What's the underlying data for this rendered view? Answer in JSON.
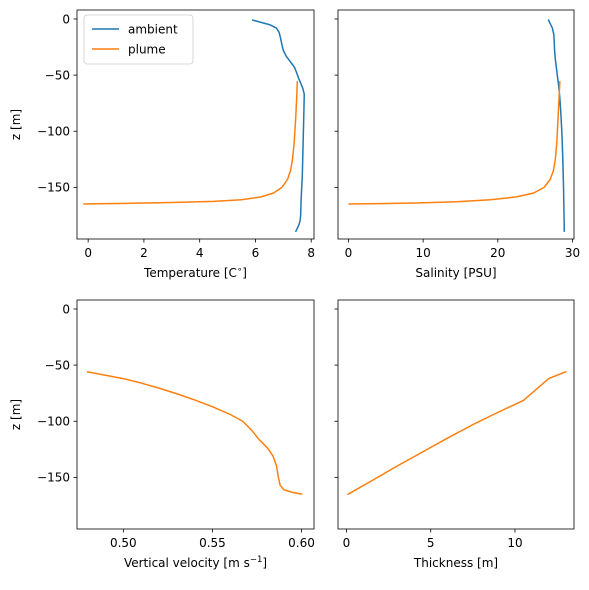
{
  "colors": {
    "ambient": "#1f77b4",
    "plume": "#ff7f0e",
    "axes": "#000000",
    "legend_border": "#cccccc",
    "background": "#ffffff"
  },
  "chart_data": [
    {
      "type": "line",
      "id": "temperature",
      "xlabel": "Temperature [C$^\\circ$]",
      "xlabel_display": {
        "main": "Temperature [C",
        "sup": "∘",
        "tail": "]"
      },
      "ylabel": "z [m]",
      "xlim": [
        -0.4,
        8.1
      ],
      "ylim": [
        -196,
        8
      ],
      "xticks": [
        0,
        2,
        4,
        6,
        8
      ],
      "xtick_labels": [
        "0",
        "2",
        "4",
        "6",
        "8"
      ],
      "yticks": [
        0,
        -50,
        -100,
        -150
      ],
      "ytick_labels": [
        "0",
        "−50",
        "−100",
        "−150"
      ],
      "show_ytick_labels": true,
      "grid": false,
      "legend": {
        "placement": "upper-left",
        "entries": [
          "ambient",
          "plume"
        ]
      },
      "series": [
        {
          "name": "ambient",
          "color_key": "ambient",
          "points": [
            [
              5.9,
              -1
            ],
            [
              6.2,
              -3
            ],
            [
              6.5,
              -5
            ],
            [
              6.75,
              -8
            ],
            [
              6.85,
              -12
            ],
            [
              6.9,
              -17
            ],
            [
              6.95,
              -23
            ],
            [
              7.0,
              -28
            ],
            [
              7.1,
              -33
            ],
            [
              7.25,
              -38
            ],
            [
              7.4,
              -43
            ],
            [
              7.48,
              -48
            ],
            [
              7.55,
              -53
            ],
            [
              7.62,
              -57
            ],
            [
              7.7,
              -62
            ],
            [
              7.75,
              -67
            ],
            [
              7.74,
              -80
            ],
            [
              7.72,
              -100
            ],
            [
              7.7,
              -120
            ],
            [
              7.68,
              -140
            ],
            [
              7.64,
              -160
            ],
            [
              7.62,
              -175
            ],
            [
              7.6,
              -180
            ],
            [
              7.55,
              -184
            ],
            [
              7.45,
              -189
            ]
          ]
        },
        {
          "name": "plume",
          "color_key": "plume",
          "points": [
            [
              7.5,
              -56
            ],
            [
              7.48,
              -70
            ],
            [
              7.44,
              -90
            ],
            [
              7.39,
              -110
            ],
            [
              7.33,
              -125
            ],
            [
              7.26,
              -135
            ],
            [
              7.15,
              -143
            ],
            [
              6.95,
              -150
            ],
            [
              6.65,
              -155
            ],
            [
              6.2,
              -158.5
            ],
            [
              5.5,
              -161
            ],
            [
              4.5,
              -162.5
            ],
            [
              3.0,
              -163.5
            ],
            [
              1.5,
              -164.2
            ],
            [
              0.3,
              -164.6
            ],
            [
              -0.15,
              -164.8
            ]
          ]
        }
      ]
    },
    {
      "type": "line",
      "id": "salinity",
      "xlabel": "Salinity [PSU]",
      "xlabel_display": {
        "main": "Salinity [PSU]",
        "sup": "",
        "tail": ""
      },
      "ylabel": "",
      "xlim": [
        -1.4,
        30.2
      ],
      "ylim": [
        -196,
        8
      ],
      "xticks": [
        0,
        10,
        20,
        30
      ],
      "xtick_labels": [
        "0",
        "10",
        "20",
        "30"
      ],
      "yticks": [
        0,
        -50,
        -100,
        -150
      ],
      "ytick_labels": [],
      "show_ytick_labels": false,
      "grid": false,
      "series": [
        {
          "name": "ambient",
          "color_key": "ambient",
          "points": [
            [
              26.8,
              -1
            ],
            [
              27.0,
              -4
            ],
            [
              27.3,
              -8
            ],
            [
              27.5,
              -14
            ],
            [
              27.55,
              -20
            ],
            [
              27.6,
              -28
            ],
            [
              27.7,
              -36
            ],
            [
              27.85,
              -44
            ],
            [
              28.0,
              -52
            ],
            [
              28.15,
              -60
            ],
            [
              28.3,
              -70
            ],
            [
              28.45,
              -85
            ],
            [
              28.6,
              -105
            ],
            [
              28.7,
              -125
            ],
            [
              28.8,
              -150
            ],
            [
              28.85,
              -170
            ],
            [
              28.9,
              -189
            ]
          ]
        },
        {
          "name": "plume",
          "color_key": "plume",
          "points": [
            [
              28.3,
              -56
            ],
            [
              28.2,
              -70
            ],
            [
              28.05,
              -90
            ],
            [
              27.9,
              -110
            ],
            [
              27.7,
              -125
            ],
            [
              27.45,
              -135
            ],
            [
              27.0,
              -143
            ],
            [
              26.2,
              -150
            ],
            [
              24.8,
              -155
            ],
            [
              22.5,
              -158.5
            ],
            [
              19.0,
              -161
            ],
            [
              14.5,
              -162.8
            ],
            [
              9.0,
              -163.9
            ],
            [
              4.0,
              -164.5
            ],
            [
              0.1,
              -164.8
            ]
          ]
        }
      ]
    },
    {
      "type": "line",
      "id": "velocity",
      "xlabel": "Vertical velocity [m s$^{-1}$]",
      "xlabel_display": {
        "main": "Vertical velocity [m s",
        "sup": "−1",
        "tail": "]"
      },
      "ylabel": "z [m]",
      "xlim": [
        0.474,
        0.607
      ],
      "ylim": [
        -196,
        8
      ],
      "xticks": [
        0.5,
        0.55,
        0.6
      ],
      "xtick_labels": [
        "0.50",
        "0.55",
        "0.60"
      ],
      "yticks": [
        0,
        -50,
        -100,
        -150
      ],
      "ytick_labels": [
        "0",
        "−50",
        "−100",
        "−150"
      ],
      "show_ytick_labels": true,
      "grid": false,
      "series": [
        {
          "name": "plume",
          "color_key": "plume",
          "points": [
            [
              0.48,
              -56
            ],
            [
              0.49,
              -59
            ],
            [
              0.5,
              -62
            ],
            [
              0.51,
              -66
            ],
            [
              0.52,
              -70.5
            ],
            [
              0.53,
              -75.5
            ],
            [
              0.54,
              -81
            ],
            [
              0.55,
              -87
            ],
            [
              0.56,
              -94
            ],
            [
              0.567,
              -100
            ],
            [
              0.572,
              -108
            ],
            [
              0.576,
              -116
            ],
            [
              0.581,
              -124
            ],
            [
              0.584,
              -131
            ],
            [
              0.586,
              -140
            ],
            [
              0.587,
              -150
            ],
            [
              0.588,
              -157
            ],
            [
              0.59,
              -161
            ],
            [
              0.595,
              -163.5
            ],
            [
              0.6,
              -164.8
            ]
          ]
        }
      ]
    },
    {
      "type": "line",
      "id": "thickness",
      "xlabel": "Thickness [m]",
      "xlabel_display": {
        "main": "Thickness [m]",
        "sup": "",
        "tail": ""
      },
      "ylabel": "",
      "xlim": [
        -0.5,
        13.5
      ],
      "ylim": [
        -196,
        8
      ],
      "xticks": [
        0,
        5,
        10
      ],
      "xtick_labels": [
        "0",
        "5",
        "10"
      ],
      "yticks": [
        0,
        -50,
        -100,
        -150
      ],
      "ytick_labels": [],
      "show_ytick_labels": false,
      "grid": false,
      "series": [
        {
          "name": "plume",
          "color_key": "plume",
          "points": [
            [
              0.1,
              -165
            ],
            [
              1.5,
              -153
            ],
            [
              3.0,
              -140
            ],
            [
              4.5,
              -127.5
            ],
            [
              6.0,
              -115
            ],
            [
              7.5,
              -103
            ],
            [
              9.0,
              -92
            ],
            [
              10.5,
              -81.5
            ],
            [
              12.0,
              -62
            ],
            [
              13.0,
              -56
            ]
          ]
        }
      ]
    }
  ]
}
